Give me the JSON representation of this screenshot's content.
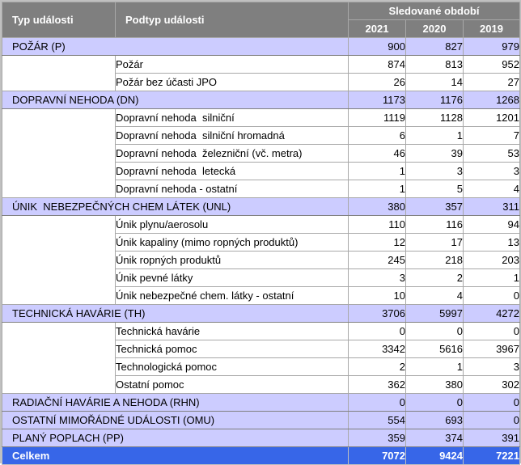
{
  "table": {
    "header": {
      "typ": "Typ události",
      "podtyp": "Podtyp události",
      "period": "Sledované období",
      "years": [
        "2021",
        "2020",
        "2019"
      ]
    },
    "groups": [
      {
        "label": "POŽÁR (P)",
        "values": [
          "900",
          "827",
          "979"
        ],
        "subtypes": [
          {
            "label": "Požár",
            "values": [
              "874",
              "813",
              "952"
            ]
          },
          {
            "label": "Požár bez účasti JPO",
            "values": [
              "26",
              "14",
              "27"
            ]
          }
        ]
      },
      {
        "label": "DOPRAVNÍ NEHODA (DN)",
        "values": [
          "1173",
          "1176",
          "1268"
        ],
        "subtypes": [
          {
            "label": "Dopravní nehoda  silniční",
            "values": [
              "1119",
              "1128",
              "1201"
            ]
          },
          {
            "label": "Dopravní nehoda  silniční hromadná",
            "values": [
              "6",
              "1",
              "7"
            ]
          },
          {
            "label": "Dopravní nehoda  železniční (vč. metra)",
            "values": [
              "46",
              "39",
              "53"
            ]
          },
          {
            "label": "Dopravní nehoda  letecká",
            "values": [
              "1",
              "3",
              "3"
            ]
          },
          {
            "label": "Dopravní nehoda - ostatní",
            "values": [
              "1",
              "5",
              "4"
            ]
          }
        ]
      },
      {
        "label": "ÚNIK  NEBEZPEČNÝCH CHEM LÁTEK (UNL)",
        "values": [
          "380",
          "357",
          "311"
        ],
        "subtypes": [
          {
            "label": "Únik plynu/aerosolu",
            "values": [
              "110",
              "116",
              "94"
            ]
          },
          {
            "label": "Únik kapaliny (mimo ropných produktů)",
            "values": [
              "12",
              "17",
              "13"
            ]
          },
          {
            "label": "Únik ropných produktů",
            "values": [
              "245",
              "218",
              "203"
            ]
          },
          {
            "label": "Únik pevné látky",
            "values": [
              "3",
              "2",
              "1"
            ]
          },
          {
            "label": "Únik nebezpečné chem. látky - ostatní",
            "values": [
              "10",
              "4",
              "0"
            ]
          }
        ]
      },
      {
        "label": "TECHNICKÁ HAVÁRIE (TH)",
        "values": [
          "3706",
          "5997",
          "4272"
        ],
        "subtypes": [
          {
            "label": "Technická havárie",
            "values": [
              "0",
              "0",
              "0"
            ]
          },
          {
            "label": "Technická pomoc",
            "values": [
              "3342",
              "5616",
              "3967"
            ]
          },
          {
            "label": "Technologická pomoc",
            "values": [
              "2",
              "1",
              "3"
            ]
          },
          {
            "label": "Ostatní pomoc",
            "values": [
              "362",
              "380",
              "302"
            ]
          }
        ]
      },
      {
        "label": "RADIAČNÍ HAVÁRIE A NEHODA (RHN)",
        "values": [
          "0",
          "0",
          "0"
        ],
        "subtypes": []
      },
      {
        "label": "OSTATNÍ MIMOŘÁDNÉ UDÁLOSTI (OMU)",
        "values": [
          "554",
          "693",
          "0"
        ],
        "subtypes": []
      },
      {
        "label": "PLANÝ POPLACH (PP)",
        "values": [
          "359",
          "374",
          "391"
        ],
        "subtypes": []
      }
    ],
    "total": {
      "label": "Celkem",
      "values": [
        "7072",
        "9424",
        "7221"
      ]
    }
  },
  "colors": {
    "header_bg": "#7F7F7F",
    "category_bg": "#CCCCFF",
    "total_bg": "#3766E8",
    "outer_border": "#C0C0C0"
  }
}
